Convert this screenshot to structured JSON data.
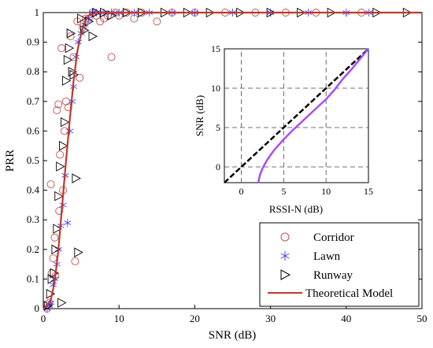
{
  "chart_data": [
    {
      "type": "scatter",
      "xlabel": "SNR (dB)",
      "ylabel": "PRR",
      "xlim": [
        0,
        50
      ],
      "ylim": [
        0,
        1
      ],
      "xticks": [
        0,
        10,
        20,
        30,
        40,
        50
      ],
      "yticks": [
        0,
        0.1,
        0.2,
        0.3,
        0.4,
        0.5,
        0.6,
        0.7,
        0.8,
        0.9,
        1
      ],
      "grid": false,
      "legend": {
        "placement": "bottom-right",
        "entries": [
          "Corridor",
          "Lawn",
          "Runway",
          "Theoretical Model"
        ]
      },
      "series": [
        {
          "name": "Corridor",
          "marker": "circle",
          "color": "#c0504d",
          "x": [
            0.5,
            0.8,
            1.0,
            1.1,
            1.3,
            1.5,
            1.6,
            1.8,
            2.0,
            2.1,
            2.2,
            2.4,
            2.6,
            2.8,
            3.0,
            3.3,
            3.6,
            4.0,
            4.2,
            4.5,
            4.8,
            5.2,
            5.6,
            6.0,
            6.5,
            7.0,
            7.5,
            8.0,
            8.5,
            9.0,
            9.5,
            10,
            11,
            12,
            13,
            15,
            17,
            20,
            24,
            28,
            32,
            36,
            42
          ],
          "y": [
            0.0,
            0.02,
            0.42,
            0.12,
            0.17,
            0.24,
            0.11,
            0.67,
            0.69,
            0.33,
            0.52,
            0.88,
            0.4,
            0.6,
            0.7,
            0.68,
            0.92,
            0.85,
            0.16,
            0.97,
            0.78,
            0.95,
            0.98,
            0.98,
            1.0,
            0.99,
            0.97,
            0.98,
            0.99,
            0.85,
            1.0,
            0.99,
            1.0,
            0.98,
            1.0,
            0.97,
            1.0,
            1.0,
            1.0,
            1.0,
            1.0,
            1.0,
            1.0
          ]
        },
        {
          "name": "Lawn",
          "marker": "star",
          "color": "#4040ff",
          "x": [
            0.5,
            0.8,
            1.0,
            1.3,
            1.5,
            1.8,
            2.0,
            2.3,
            2.6,
            2.9,
            3.2,
            3.5,
            3.8,
            4.0,
            4.3,
            4.6,
            5.0,
            5.5,
            6.0,
            6.5,
            7.0,
            8.0,
            9.0,
            10,
            12,
            14,
            17,
            20,
            25,
            30,
            35,
            40,
            43
          ],
          "y": [
            0.0,
            0.01,
            0.02,
            0.08,
            0.1,
            0.15,
            0.2,
            0.28,
            0.35,
            0.45,
            0.29,
            0.6,
            0.7,
            0.75,
            0.85,
            0.9,
            0.93,
            0.96,
            0.98,
            1.0,
            1.0,
            1.0,
            1.0,
            1.0,
            1.0,
            1.0,
            1.0,
            1.0,
            1.0,
            1.0,
            1.0,
            1.0,
            1.0
          ]
        },
        {
          "name": "Runway",
          "marker": "triangle-right",
          "color": "#000000",
          "x": [
            0.6,
            0.9,
            1.1,
            1.4,
            1.6,
            1.8,
            2.0,
            2.2,
            2.4,
            2.6,
            2.8,
            3.0,
            3.2,
            3.4,
            3.6,
            3.8,
            4.0,
            4.3,
            4.6,
            5.0,
            5.4,
            6.0,
            6.5,
            7.0,
            8.0,
            9.0,
            11,
            13,
            16,
            19,
            22,
            26,
            30,
            34,
            38,
            44,
            48
          ],
          "y": [
            0.01,
            0.05,
            0.1,
            0.12,
            0.2,
            0.27,
            0.38,
            0.48,
            0.02,
            0.55,
            0.63,
            0.77,
            0.84,
            0.88,
            0.93,
            0.8,
            0.79,
            0.44,
            0.19,
            0.98,
            0.94,
            0.97,
            0.92,
            1.0,
            1.0,
            0.99,
            1.0,
            1.0,
            1.0,
            1.0,
            1.0,
            1.0,
            1.0,
            1.0,
            1.0,
            1.0,
            1.0
          ]
        },
        {
          "name": "Theoretical Model",
          "type": "line",
          "color": "#c0392b",
          "x": [
            0,
            0.5,
            1.0,
            1.5,
            2.0,
            2.5,
            3.0,
            3.5,
            4.0,
            4.5,
            5.0,
            5.5,
            6.0,
            7.0,
            8.0,
            10,
            15,
            20,
            30,
            40,
            50
          ],
          "y": [
            0.0,
            0.01,
            0.03,
            0.09,
            0.2,
            0.35,
            0.5,
            0.64,
            0.77,
            0.87,
            0.93,
            0.97,
            0.99,
            1.0,
            1.0,
            1.0,
            1.0,
            1.0,
            1.0,
            1.0,
            1.0
          ]
        }
      ]
    },
    {
      "type": "line",
      "xlabel": "RSSI-N (dB)",
      "ylabel": "SNR (dB)",
      "xlim": [
        -2,
        15
      ],
      "ylim": [
        -2,
        15
      ],
      "xticks": [
        0,
        5,
        10,
        15
      ],
      "yticks": [
        0,
        5,
        10,
        15
      ],
      "grid": true,
      "series": [
        {
          "style": "dashed",
          "color": "#000000",
          "x": [
            -2,
            15
          ],
          "y": [
            -2,
            15
          ]
        },
        {
          "style": "solid",
          "color": "#a64dff",
          "x": [
            2.0,
            2.2,
            2.5,
            3.0,
            3.5,
            4.0,
            5.0,
            6.0,
            7.0,
            8.0,
            9.0,
            10.0,
            11.0,
            12.0,
            13.0,
            14.0,
            15.0
          ],
          "y": [
            -2.0,
            -1.0,
            -0.2,
            0.8,
            1.6,
            2.3,
            3.5,
            4.6,
            5.6,
            6.6,
            7.6,
            8.6,
            9.8,
            11.2,
            12.4,
            13.7,
            15.0
          ]
        }
      ]
    }
  ]
}
